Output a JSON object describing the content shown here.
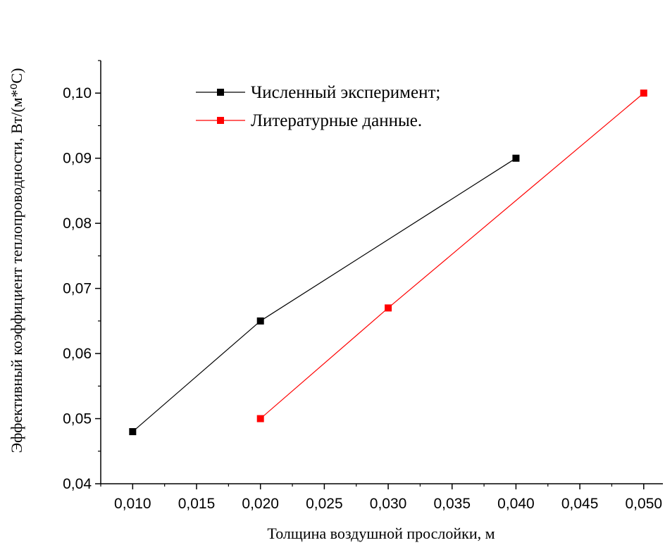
{
  "chart_data": {
    "type": "line",
    "xlabel": "Толщина воздушной прослойки, м",
    "ylabel": "Эффективный коэффициент теплопроводности, Вт/(м*⁰С)",
    "xlim": [
      0.0075,
      0.0515
    ],
    "ylim": [
      0.04,
      0.105
    ],
    "x_ticks": [
      "0,010",
      "0,015",
      "0,020",
      "0,025",
      "0,030",
      "0,035",
      "0,040",
      "0,045",
      "0,050"
    ],
    "x_tick_values": [
      0.01,
      0.015,
      0.02,
      0.025,
      0.03,
      0.035,
      0.04,
      0.045,
      0.05
    ],
    "y_ticks": [
      "0,04",
      "0,05",
      "0,06",
      "0,07",
      "0,08",
      "0,09",
      "0,10"
    ],
    "y_tick_values": [
      0.04,
      0.05,
      0.06,
      0.07,
      0.08,
      0.09,
      0.1
    ],
    "grid": false,
    "legend_position": "top-left",
    "series": [
      {
        "name": "Численный эксперимент;",
        "color": "#000000",
        "marker": "square",
        "x": [
          0.01,
          0.02,
          0.04
        ],
        "y": [
          0.048,
          0.065,
          0.09
        ]
      },
      {
        "name": "Литературные данные.",
        "color": "#ff0000",
        "marker": "square",
        "x": [
          0.02,
          0.03,
          0.05
        ],
        "y": [
          0.05,
          0.067,
          0.1
        ]
      }
    ]
  }
}
